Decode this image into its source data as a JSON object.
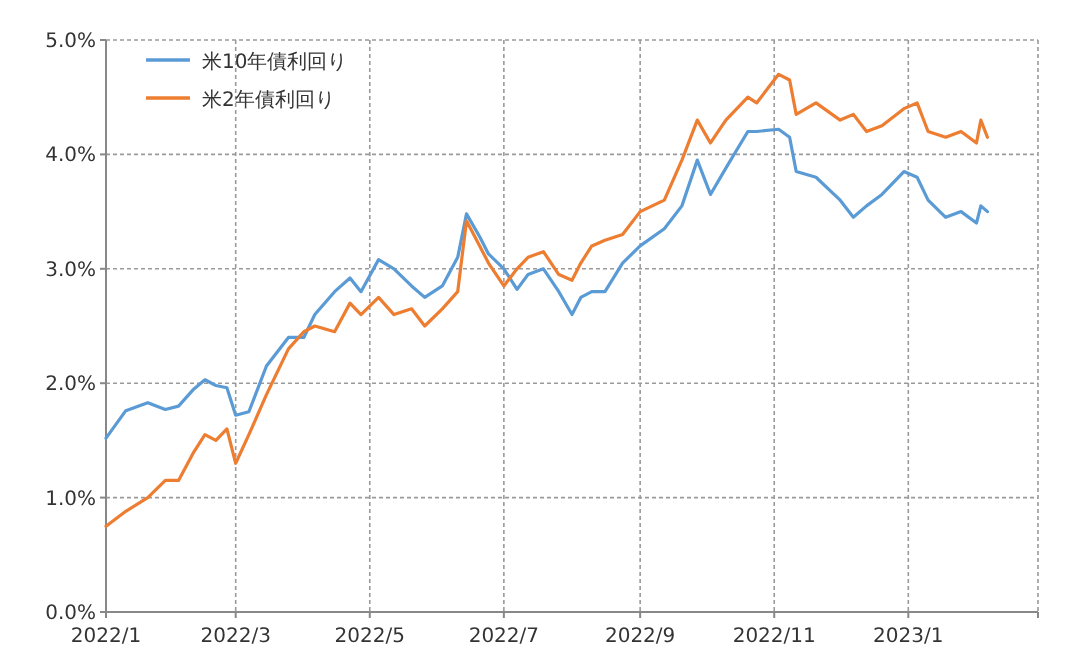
{
  "chart_data": {
    "type": "line",
    "legend": "top left",
    "grid": true,
    "line_style": "solid",
    "marker": "none",
    "xlim": [
      "2022-01-01",
      "2023-03-01"
    ],
    "xticks": [
      {
        "value": "2022-01-01",
        "label": "2022/1"
      },
      {
        "value": "2022-03-01",
        "label": "2022/3"
      },
      {
        "value": "2022-05-01",
        "label": "2022/5"
      },
      {
        "value": "2022-07-01",
        "label": "2022/7"
      },
      {
        "value": "2022-09-01",
        "label": "2022/9"
      },
      {
        "value": "2022-11-01",
        "label": "2022/11"
      },
      {
        "value": "2023-01-01",
        "label": "2023/1"
      },
      {
        "value": "2023-03-01",
        "label": null
      }
    ],
    "ylim": [
      0,
      5
    ],
    "yticks": [
      {
        "value": 0,
        "label": "0.0%"
      },
      {
        "value": 1,
        "label": "1.0%"
      },
      {
        "value": 2,
        "label": "2.0%"
      },
      {
        "value": 3,
        "label": "3.0%"
      },
      {
        "value": 4,
        "label": "4.0%"
      },
      {
        "value": 5,
        "label": "5.0%"
      }
    ],
    "x": [
      "2022-01-01",
      "2022-01-10",
      "2022-01-20",
      "2022-01-28",
      "2022-02-03",
      "2022-02-10",
      "2022-02-15",
      "2022-02-20",
      "2022-02-25",
      "2022-03-01",
      "2022-03-07",
      "2022-03-15",
      "2022-03-25",
      "2022-04-01",
      "2022-04-06",
      "2022-04-15",
      "2022-04-22",
      "2022-04-27",
      "2022-05-05",
      "2022-05-12",
      "2022-05-20",
      "2022-05-26",
      "2022-06-03",
      "2022-06-10",
      "2022-06-14",
      "2022-06-20",
      "2022-06-24",
      "2022-07-01",
      "2022-07-07",
      "2022-07-12",
      "2022-07-19",
      "2022-07-26",
      "2022-08-01",
      "2022-08-05",
      "2022-08-10",
      "2022-08-16",
      "2022-08-24",
      "2022-09-01",
      "2022-09-12",
      "2022-09-20",
      "2022-09-27",
      "2022-10-03",
      "2022-10-10",
      "2022-10-20",
      "2022-10-24",
      "2022-11-03",
      "2022-11-08",
      "2022-11-11",
      "2022-11-20",
      "2022-12-01",
      "2022-12-07",
      "2022-12-13",
      "2022-12-20",
      "2022-12-30",
      "2023-01-05",
      "2023-01-10",
      "2023-01-18",
      "2023-01-25",
      "2023-02-01",
      "2023-02-03",
      "2023-02-06"
    ],
    "series": [
      {
        "name": "米10年債利回り",
        "color": "#5b9bd5",
        "values": [
          1.52,
          1.76,
          1.83,
          1.77,
          1.8,
          1.95,
          2.03,
          1.98,
          1.96,
          1.72,
          1.75,
          2.15,
          2.4,
          2.4,
          2.6,
          2.8,
          2.92,
          2.8,
          3.08,
          3.0,
          2.85,
          2.75,
          2.85,
          3.1,
          3.48,
          3.28,
          3.13,
          3.0,
          2.82,
          2.95,
          3.0,
          2.8,
          2.6,
          2.75,
          2.8,
          2.8,
          3.05,
          3.2,
          3.35,
          3.55,
          3.95,
          3.65,
          3.88,
          4.2,
          4.2,
          4.22,
          4.15,
          3.85,
          3.8,
          3.6,
          3.45,
          3.55,
          3.65,
          3.85,
          3.8,
          3.6,
          3.45,
          3.5,
          3.4,
          3.55,
          3.5
        ]
      },
      {
        "name": "米2年債利回り",
        "color": "#ed7d31",
        "values": [
          0.75,
          0.88,
          1.0,
          1.15,
          1.15,
          1.4,
          1.55,
          1.5,
          1.6,
          1.3,
          1.55,
          1.9,
          2.3,
          2.45,
          2.5,
          2.45,
          2.7,
          2.6,
          2.75,
          2.6,
          2.65,
          2.5,
          2.65,
          2.8,
          3.42,
          3.2,
          3.05,
          2.85,
          3.0,
          3.1,
          3.15,
          2.95,
          2.9,
          3.05,
          3.2,
          3.25,
          3.3,
          3.5,
          3.6,
          3.95,
          4.3,
          4.1,
          4.3,
          4.5,
          4.45,
          4.7,
          4.65,
          4.35,
          4.45,
          4.3,
          4.35,
          4.2,
          4.25,
          4.4,
          4.45,
          4.2,
          4.15,
          4.2,
          4.1,
          4.3,
          4.15
        ]
      }
    ]
  }
}
